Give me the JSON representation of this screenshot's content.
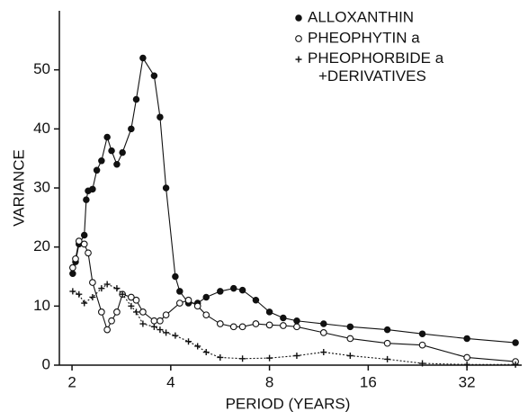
{
  "chart_data": {
    "type": "line",
    "x_label": "PERIOD (YEARS)",
    "y_label": "VARIANCE",
    "xscale": "log",
    "xlim": [
      1.83,
      47
    ],
    "xticks": [
      2,
      4,
      8,
      16,
      32
    ],
    "ylim": [
      0,
      60
    ],
    "yticks": [
      0,
      10,
      20,
      30,
      40,
      50
    ],
    "legend": "upper right",
    "series": [
      {
        "name": "ALLOXANTHIN",
        "marker": "filled-circle",
        "color": "#111111",
        "x": [
          2.01,
          2.05,
          2.1,
          2.18,
          2.21,
          2.24,
          2.31,
          2.38,
          2.46,
          2.56,
          2.64,
          2.74,
          2.85,
          3.03,
          3.14,
          3.29,
          3.56,
          3.71,
          3.87,
          4.13,
          4.26,
          4.53,
          4.83,
          5.13,
          5.66,
          6.22,
          6.62,
          7.27,
          8.0,
          8.81,
          9.69,
          11.7,
          14.1,
          18.3,
          23.4,
          32,
          45
        ],
        "values": [
          15.5,
          17.5,
          20.5,
          22,
          28,
          29.5,
          29.8,
          33,
          34.6,
          38.6,
          36.3,
          34,
          36,
          40,
          45,
          52,
          49,
          42,
          30,
          15,
          12.5,
          10.5,
          10.5,
          11.5,
          12.5,
          13,
          12.7,
          11,
          9,
          8,
          7.5,
          7,
          6.5,
          6,
          5.3,
          4.5,
          3.8
        ]
      },
      {
        "name": "PHEOPHYTIN a",
        "marker": "open-circle",
        "color": "#111111",
        "x": [
          2.01,
          2.05,
          2.1,
          2.18,
          2.24,
          2.31,
          2.46,
          2.56,
          2.64,
          2.74,
          2.85,
          3.03,
          3.14,
          3.29,
          3.56,
          3.71,
          3.87,
          4.26,
          4.53,
          4.83,
          5.13,
          5.66,
          6.22,
          6.62,
          7.27,
          8.0,
          8.81,
          9.69,
          11.7,
          14.1,
          18.3,
          23.4,
          32,
          45
        ],
        "values": [
          16.5,
          18,
          21,
          20.5,
          19,
          14,
          9,
          6,
          7.5,
          9,
          12,
          11.5,
          11,
          9,
          7.5,
          7.5,
          8.5,
          10.5,
          11,
          10,
          8.5,
          7,
          6.5,
          6.5,
          7,
          6.8,
          6.7,
          6.5,
          5.5,
          4.5,
          3.7,
          3.4,
          1.3,
          0.6
        ]
      },
      {
        "name": "PHEOPHORBIDE a +DERIVATIVES",
        "marker": "plus",
        "color": "#111111",
        "x": [
          2.01,
          2.1,
          2.18,
          2.31,
          2.46,
          2.56,
          2.74,
          2.85,
          3.03,
          3.14,
          3.29,
          3.56,
          3.71,
          3.87,
          4.13,
          4.53,
          4.83,
          5.13,
          5.66,
          6.62,
          8.0,
          9.69,
          11.7,
          14.1,
          18.3,
          23.4,
          32,
          45
        ],
        "values": [
          12.5,
          12,
          10.5,
          11.5,
          13,
          13.7,
          13,
          12,
          10,
          9,
          7,
          6.5,
          6,
          5.5,
          5,
          4,
          3.2,
          2.2,
          1.3,
          1.1,
          1.2,
          1.6,
          2.2,
          1.6,
          1.0,
          0.3,
          0.1,
          0.1
        ]
      }
    ]
  }
}
